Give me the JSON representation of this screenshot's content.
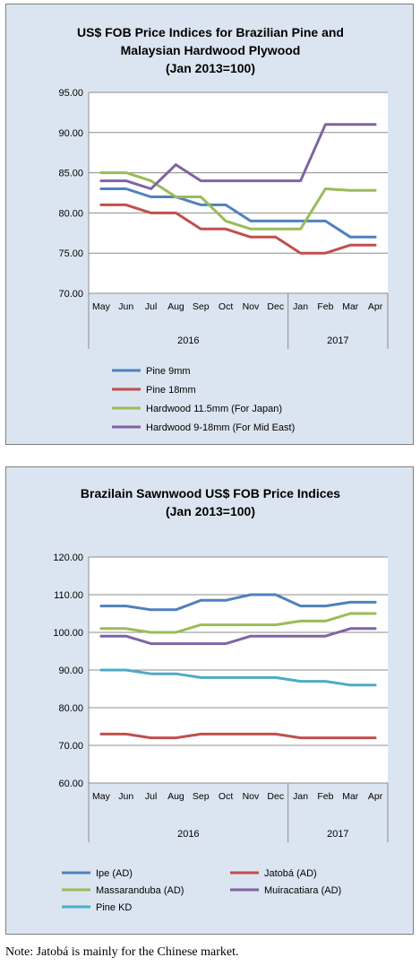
{
  "chart_data": [
    {
      "type": "line",
      "title": [
        "US$ FOB Price Indices for Brazilian Pine and",
        "Malaysian Hardwood Plywood",
        "(Jan 2013=100)"
      ],
      "categories": [
        "May",
        "Jun",
        "Jul",
        "Aug",
        "Sep",
        "Oct",
        "Nov",
        "Dec",
        "Jan",
        "Feb",
        "Mar",
        "Apr"
      ],
      "year_groups": [
        {
          "label": "2016",
          "span": [
            0,
            7
          ]
        },
        {
          "label": "2017",
          "span": [
            8,
            11
          ]
        }
      ],
      "ylim": [
        70,
        95
      ],
      "yticks": [
        "70.00",
        "75.00",
        "80.00",
        "85.00",
        "90.00",
        "95.00"
      ],
      "grid": true,
      "legend": "bottom",
      "series": [
        {
          "name": "Pine 9mm",
          "color": "#4f81bd",
          "values": [
            83,
            83,
            82,
            82,
            81,
            81,
            79,
            79,
            79,
            79,
            77,
            77
          ]
        },
        {
          "name": "Pine 18mm",
          "color": "#c0504d",
          "values": [
            81,
            81,
            80,
            80,
            78,
            78,
            77,
            77,
            75,
            75,
            76,
            76
          ]
        },
        {
          "name": "Hardwood 11.5mm (For Japan)",
          "color": "#9bbb59",
          "values": [
            85,
            85,
            84,
            82,
            82,
            79,
            78,
            78,
            78,
            83,
            82.8,
            82.8
          ]
        },
        {
          "name": "Hardwood 9-18mm (For Mid East)",
          "color": "#8064a2",
          "values": [
            84,
            84,
            83,
            86,
            84,
            84,
            84,
            84,
            84,
            91,
            91,
            91
          ]
        }
      ]
    },
    {
      "type": "line",
      "title": [
        "Brazilain Sawnwood US$ FOB Price Indices",
        "(Jan 2013=100)"
      ],
      "categories": [
        "May",
        "Jun",
        "Jul",
        "Aug",
        "Sep",
        "Oct",
        "Nov",
        "Dec",
        "Jan",
        "Feb",
        "Mar",
        "Apr"
      ],
      "year_groups": [
        {
          "label": "2016",
          "span": [
            0,
            7
          ]
        },
        {
          "label": "2017",
          "span": [
            8,
            11
          ]
        }
      ],
      "ylim": [
        60,
        120
      ],
      "yticks": [
        "60.00",
        "70.00",
        "80.00",
        "90.00",
        "100.00",
        "110.00",
        "120.00"
      ],
      "grid": true,
      "legend": "bottom",
      "series": [
        {
          "name": "Ipe (AD)",
          "color": "#4f81bd",
          "values": [
            107,
            107,
            106,
            106,
            108.5,
            108.5,
            110,
            110,
            107,
            107,
            108,
            108
          ]
        },
        {
          "name": "Jatobá (AD)",
          "color": "#c0504d",
          "values": [
            73,
            73,
            72,
            72,
            73,
            73,
            73,
            73,
            72,
            72,
            72,
            72
          ]
        },
        {
          "name": "Massaranduba (AD)",
          "color": "#9bbb59",
          "values": [
            101,
            101,
            100,
            100,
            102,
            102,
            102,
            102,
            103,
            103,
            105,
            105
          ]
        },
        {
          "name": "Muiracatiara (AD)",
          "color": "#8064a2",
          "values": [
            99,
            99,
            97,
            97,
            97,
            97,
            99,
            99,
            99,
            99,
            101,
            101
          ]
        },
        {
          "name": "Pine KD",
          "color": "#4bacc6",
          "values": [
            90,
            90,
            89,
            89,
            88,
            88,
            88,
            88,
            87,
            87,
            86,
            86
          ]
        }
      ]
    }
  ],
  "note": "Note: Jatobá is mainly for the Chinese market."
}
